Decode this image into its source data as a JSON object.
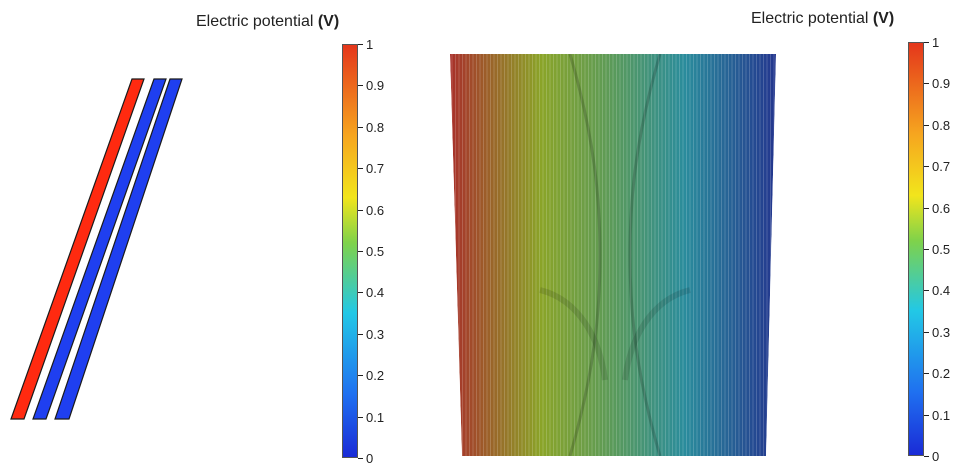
{
  "left_figure": {
    "colorbar": {
      "title_prefix": "Electric potential ",
      "title_unit": "(V)",
      "ticks": [
        "1",
        "0.9",
        "0.8",
        "0.7",
        "0.6",
        "0.5",
        "0.4",
        "0.3",
        "0.2",
        "0.1",
        "0"
      ]
    },
    "electrodes": [
      {
        "color": "#ff2a10",
        "potential": 1
      },
      {
        "color": "#1f3ff0",
        "potential": 0
      },
      {
        "color": "#1f3ff0",
        "potential": 0
      }
    ]
  },
  "right_figure": {
    "colorbar": {
      "title_prefix": "Electric potential ",
      "title_unit": "(V)",
      "ticks": [
        "1",
        "0.9",
        "0.8",
        "0.7",
        "0.6",
        "0.5",
        "0.4",
        "0.3",
        "0.2",
        "0.1",
        "0"
      ]
    },
    "field_colors": [
      "#b03a2a",
      "#8ab02a",
      "#2a8a9a",
      "#2a3a9a"
    ]
  }
}
